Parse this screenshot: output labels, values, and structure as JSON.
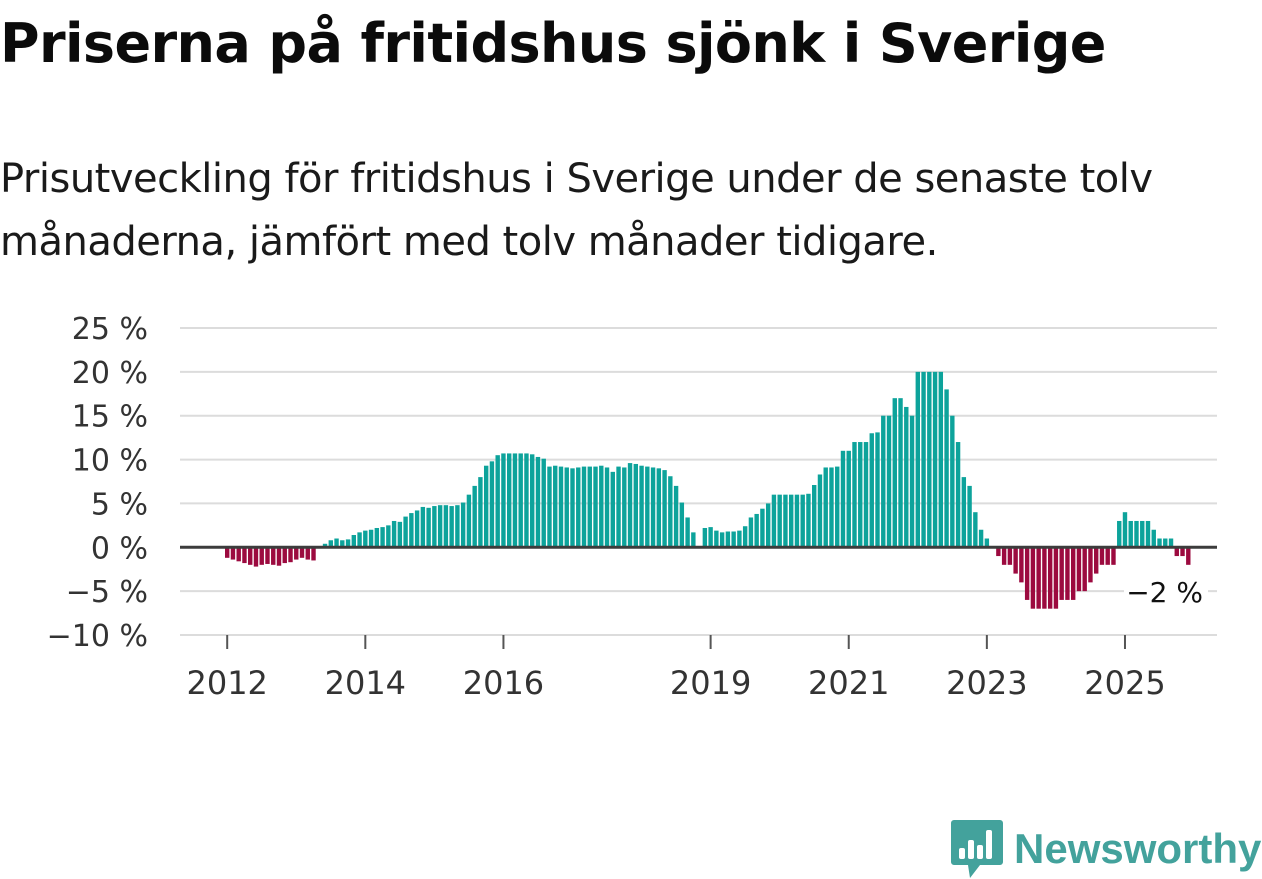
{
  "title": "Priserna på fritidshus sjönk i Sverige",
  "subtitle": "Prisutveckling för fritidshus i Sverige under de senaste tolv månaderna, jämfört med tolv månader tidigare.",
  "logo": {
    "text": "Newsworthy",
    "icon": "chart-speech-bubble-icon",
    "color": "#43a29c"
  },
  "chart_data": {
    "type": "bar",
    "title": "Priserna på fritidshus sjönk i Sverige",
    "xlabel": "",
    "ylabel": "",
    "ylim": [
      -10,
      25
    ],
    "y_ticks": [
      25,
      20,
      15,
      10,
      5,
      0,
      -5,
      -10
    ],
    "y_tick_labels": [
      "25 %",
      "20 %",
      "15 %",
      "10 %",
      "5 %",
      "0 %",
      "−5 %",
      "−10 %"
    ],
    "x_tick_labels": [
      "2012",
      "2014",
      "2016",
      "2019",
      "2021",
      "2023",
      "2025"
    ],
    "x_tick_months": [
      0,
      24,
      48,
      84,
      108,
      132,
      156
    ],
    "start": "2012-01",
    "frequency": "monthly",
    "grid": true,
    "positive_color": "#0da39b",
    "negative_color": "#9c0a3f",
    "zero_line_color": "#3c3c3c",
    "grid_color": "#dcdcdc",
    "end_label": "−2 %",
    "values": [
      -1.2,
      -1.4,
      -1.6,
      -1.8,
      -2.0,
      -2.2,
      -2.0,
      -1.9,
      -2.0,
      -2.1,
      -1.8,
      -1.7,
      -1.4,
      -1.2,
      -1.4,
      -1.5,
      0.0,
      0.4,
      0.8,
      1.0,
      0.8,
      0.9,
      1.4,
      1.7,
      1.9,
      2.0,
      2.2,
      2.3,
      2.5,
      3.0,
      2.9,
      3.5,
      3.9,
      4.2,
      4.6,
      4.5,
      4.7,
      4.8,
      4.8,
      4.7,
      4.8,
      5.1,
      6.0,
      7.0,
      8.0,
      9.3,
      9.8,
      10.5,
      10.7,
      10.7,
      10.7,
      10.7,
      10.7,
      10.6,
      10.3,
      10.1,
      9.2,
      9.3,
      9.2,
      9.1,
      9.0,
      9.1,
      9.2,
      9.2,
      9.2,
      9.3,
      9.1,
      8.6,
      9.2,
      9.1,
      9.6,
      9.5,
      9.3,
      9.2,
      9.1,
      9.0,
      8.8,
      8.1,
      7.0,
      5.1,
      3.4,
      1.7,
      0.0,
      2.2,
      2.3,
      1.9,
      1.7,
      1.8,
      1.8,
      1.9,
      2.4,
      3.4,
      3.8,
      4.4,
      5.0,
      6.0,
      6.0,
      6.0,
      6.0,
      6.0,
      6.0,
      6.1,
      7.1,
      8.3,
      9.1,
      9.1,
      9.2,
      11.0,
      11.0,
      12.0,
      12.0,
      12.0,
      13.0,
      13.1,
      15.0,
      15.0,
      17.0,
      17.0,
      16.0,
      15.0,
      20.0,
      20.0,
      20.0,
      20.0,
      20.0,
      18.0,
      15.0,
      12.0,
      8.0,
      7.0,
      4.0,
      2.0,
      1.0,
      0.0,
      -1.0,
      -2.0,
      -2.0,
      -3.0,
      -4.0,
      -6.0,
      -7.0,
      -7.0,
      -7.0,
      -7.0,
      -7.0,
      -6.0,
      -6.0,
      -6.0,
      -5.0,
      -5.0,
      -4.0,
      -3.0,
      -2.0,
      -2.0,
      -2.0,
      3.0,
      4.0,
      3.0,
      3.0,
      3.0,
      3.0,
      2.0,
      1.0,
      1.0,
      1.0,
      -1.0,
      -1.0,
      -2.0
    ]
  }
}
